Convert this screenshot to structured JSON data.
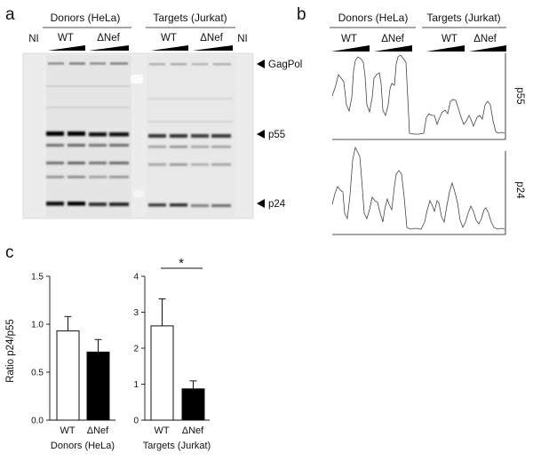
{
  "panel_a": {
    "label": "a",
    "groups": [
      {
        "name": "Donors (HeLa)",
        "lanes": [
          {
            "label": "WT"
          },
          {
            "label": "ΔNef"
          }
        ]
      },
      {
        "name": "Targets (Jurkat)",
        "lanes": [
          {
            "label": "WT"
          },
          {
            "label": "ΔNef"
          }
        ]
      }
    ],
    "ni_left": "NI",
    "ni_right": "NI",
    "bands": [
      {
        "label": "GagPol"
      },
      {
        "label": "p55"
      },
      {
        "label": "p24"
      }
    ]
  },
  "panel_b": {
    "label": "b",
    "groups": [
      {
        "name": "Donors (HeLa)",
        "lanes": [
          {
            "label": "WT"
          },
          {
            "label": "ΔNef"
          }
        ]
      },
      {
        "name": "Targets (Jurkat)",
        "lanes": [
          {
            "label": "WT"
          },
          {
            "label": "ΔNef"
          }
        ]
      }
    ],
    "traces": [
      {
        "label": "p55"
      },
      {
        "label": "p24"
      }
    ]
  },
  "panel_c": {
    "label": "c",
    "ylabel": "Ratio p24/p55",
    "significance": "*"
  },
  "chart_data": [
    {
      "type": "bar",
      "title": "",
      "xlabel": "Donors (HeLa)",
      "ylabel": "Ratio p24/p55",
      "categories": [
        "WT",
        "ΔNef"
      ],
      "values": [
        0.93,
        0.71
      ],
      "errors": [
        0.15,
        0.13
      ],
      "fills": [
        "#ffffff",
        "#000000"
      ],
      "ylim": [
        0,
        1.5
      ],
      "yticks": [
        "0.0",
        "0.5",
        "1.0",
        "1.5"
      ],
      "ytick_values": [
        0,
        0.5,
        1.0,
        1.5
      ]
    },
    {
      "type": "bar",
      "title": "",
      "xlabel": "Targets (Jurkat)",
      "ylabel": "",
      "categories": [
        "WT",
        "ΔNef"
      ],
      "values": [
        2.62,
        0.87
      ],
      "errors": [
        0.75,
        0.22
      ],
      "fills": [
        "#ffffff",
        "#000000"
      ],
      "ylim": [
        0,
        4
      ],
      "yticks": [
        "0",
        "1",
        "2",
        "3",
        "4"
      ],
      "ytick_values": [
        0,
        1,
        2,
        3,
        4
      ]
    }
  ]
}
